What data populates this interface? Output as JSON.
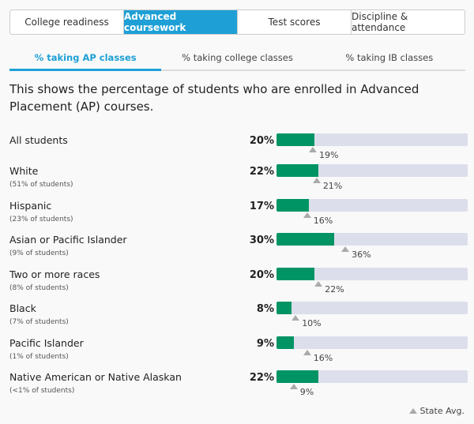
{
  "tabs": [
    "College readiness",
    "Advanced coursework",
    "Test scores",
    "Discipline & attendance"
  ],
  "active_tab": 1,
  "subtabs": [
    "% taking AP classes",
    "% taking college classes",
    "% taking IB classes"
  ],
  "active_subtab": 0,
  "description": "This shows the percentage of students who are enrolled in Advanced Placement (AP) courses.",
  "rows": [
    {
      "label": "All students",
      "sub": "",
      "value": 20,
      "value_label": "20%",
      "state": 19,
      "state_label": "19%"
    },
    {
      "label": "White",
      "sub": "(51% of students)",
      "value": 22,
      "value_label": "22%",
      "state": 21,
      "state_label": "21%"
    },
    {
      "label": "Hispanic",
      "sub": "(23% of students)",
      "value": 17,
      "value_label": "17%",
      "state": 16,
      "state_label": "16%"
    },
    {
      "label": "Asian or Pacific Islander",
      "sub": "(9% of students)",
      "value": 30,
      "value_label": "30%",
      "state": 36,
      "state_label": "36%"
    },
    {
      "label": "Two or more races",
      "sub": "(8% of students)",
      "value": 20,
      "value_label": "20%",
      "state": 22,
      "state_label": "22%"
    },
    {
      "label": "Black",
      "sub": "(7% of students)",
      "value": 8,
      "value_label": "8%",
      "state": 10,
      "state_label": "10%"
    },
    {
      "label": "Pacific Islander",
      "sub": "(1% of students)",
      "value": 9,
      "value_label": "9%",
      "state": 16,
      "state_label": "16%"
    },
    {
      "label": "Native American or Native Alaskan",
      "sub": "(<1% of students)",
      "value": 22,
      "value_label": "22%",
      "state": 9,
      "state_label": "9%"
    }
  ],
  "legend": "State Avg.",
  "colors": {
    "accent": "#1ea0d6",
    "bar": "#009465",
    "track": "#dcdeec",
    "marker": "#aaaaaa"
  }
}
